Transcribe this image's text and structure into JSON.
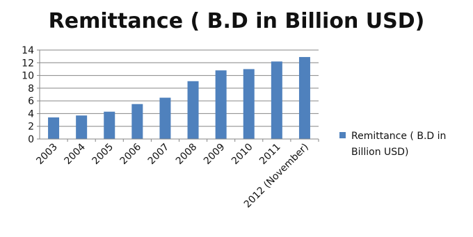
{
  "chart_data": {
    "type": "bar",
    "title": "Remittance ( B.D in Billion USD)",
    "categories": [
      "2003",
      "2004",
      "2005",
      "2006",
      "2007",
      "2008",
      "2009",
      "2010",
      "2011",
      "2012 (November)"
    ],
    "series": [
      {
        "name": "Remittance ( B.D in Billion USD)",
        "values": [
          3.4,
          3.7,
          4.3,
          5.5,
          6.5,
          9.1,
          10.8,
          11.0,
          12.2,
          12.9
        ],
        "color": "#4f81bd"
      }
    ],
    "yticks": [
      "0",
      "2",
      "4",
      "6",
      "8",
      "10",
      "12",
      "14"
    ],
    "ylim": [
      0,
      14
    ],
    "grid": true,
    "legend_position": "right",
    "legend_lines": [
      "Remittance ( B.D in",
      "Billion USD)"
    ]
  }
}
